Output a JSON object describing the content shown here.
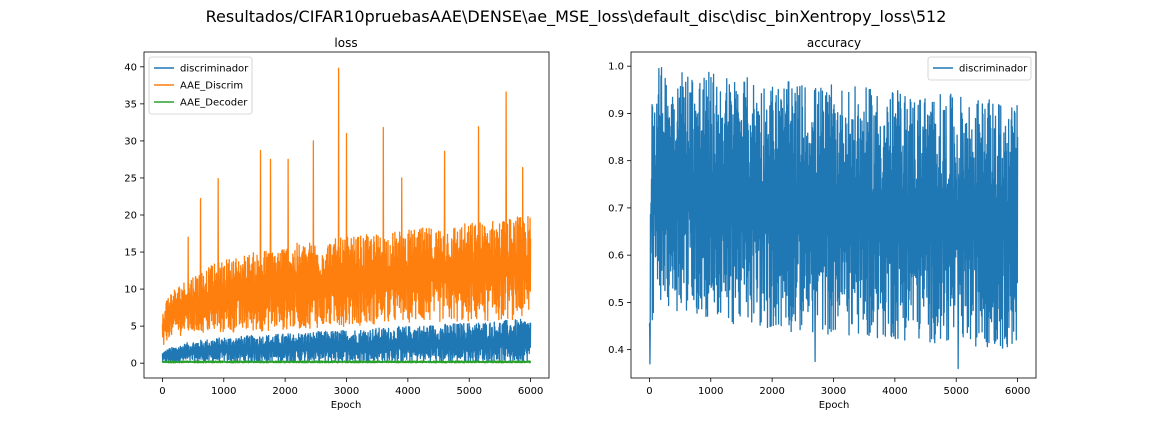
{
  "suptitle": "Resultados/CIFAR10pruebasAAE\\DENSE\\ae_MSE_loss\\default_disc\\disc_binXentropy_loss\\512",
  "chart_data": [
    {
      "type": "line",
      "title": "loss",
      "xlabel": "Epoch",
      "ylabel": "",
      "xlim": [
        -300,
        6300
      ],
      "ylim": [
        -2,
        42
      ],
      "xticks": [
        0,
        1000,
        2000,
        3000,
        4000,
        5000,
        6000
      ],
      "yticks": [
        0,
        5,
        10,
        15,
        20,
        25,
        30,
        35,
        40
      ],
      "legend_position": "top-left",
      "grid": false,
      "x_range": [
        0,
        6000
      ],
      "series": [
        {
          "name": "discriminador",
          "color": "#1f77b4",
          "x": [
            0,
            100,
            500,
            1000,
            2000,
            3000,
            4000,
            5000,
            6000
          ],
          "low": [
            0.1,
            0.1,
            0.1,
            0.1,
            0.1,
            0.1,
            0.1,
            0.1,
            0.1
          ],
          "high": [
            1.5,
            2.0,
            3.0,
            3.5,
            4.0,
            4.5,
            5.0,
            5.5,
            6.0
          ]
        },
        {
          "name": "AAE_Discrim",
          "color": "#ff7f0e",
          "x": [
            0,
            100,
            500,
            1000,
            2000,
            3000,
            4000,
            5000,
            6000
          ],
          "low": [
            1.5,
            3.5,
            4.0,
            4.0,
            4.5,
            5.0,
            5.5,
            5.5,
            6.0
          ],
          "high": [
            7.0,
            9.5,
            12.0,
            14.0,
            16.0,
            17.0,
            18.0,
            19.0,
            20.0
          ],
          "peaks": [
            {
              "x": 420,
              "y": 17.0
            },
            {
              "x": 620,
              "y": 22.2
            },
            {
              "x": 910,
              "y": 24.9
            },
            {
              "x": 1600,
              "y": 28.7
            },
            {
              "x": 1760,
              "y": 27.5
            },
            {
              "x": 2050,
              "y": 27.5
            },
            {
              "x": 2460,
              "y": 30.0
            },
            {
              "x": 2870,
              "y": 39.8
            },
            {
              "x": 3000,
              "y": 31.0
            },
            {
              "x": 3600,
              "y": 31.8
            },
            {
              "x": 3900,
              "y": 25.0
            },
            {
              "x": 4600,
              "y": 28.6
            },
            {
              "x": 5150,
              "y": 31.9
            },
            {
              "x": 5600,
              "y": 36.6
            },
            {
              "x": 5870,
              "y": 26.4
            }
          ]
        },
        {
          "name": "AAE_Decoder",
          "color": "#2ca02c",
          "x": [
            0,
            6000
          ],
          "low": [
            0.05,
            0.05
          ],
          "high": [
            0.3,
            0.3
          ]
        }
      ]
    },
    {
      "type": "line",
      "title": "accuracy",
      "xlabel": "Epoch",
      "ylabel": "",
      "xlim": [
        -300,
        6300
      ],
      "ylim": [
        0.34,
        1.03
      ],
      "xticks": [
        0,
        1000,
        2000,
        3000,
        4000,
        5000,
        6000
      ],
      "yticks": [
        0.4,
        0.5,
        0.6,
        0.7,
        0.8,
        0.9,
        1.0
      ],
      "legend_position": "top-right",
      "grid": false,
      "x_range": [
        0,
        6000
      ],
      "series": [
        {
          "name": "discriminador",
          "color": "#1f77b4",
          "x": [
            0,
            30,
            100,
            500,
            1000,
            2000,
            3000,
            4000,
            5000,
            6000
          ],
          "low": [
            0.37,
            0.45,
            0.5,
            0.48,
            0.46,
            0.44,
            0.43,
            0.42,
            0.41,
            0.4
          ],
          "high": [
            0.5,
            0.98,
            1.0,
            1.0,
            0.99,
            0.97,
            0.96,
            0.95,
            0.94,
            0.92
          ],
          "dips": [
            {
              "x": 2700,
              "y": 0.375
            },
            {
              "x": 5030,
              "y": 0.36
            },
            {
              "x": 10,
              "y": 0.37
            }
          ]
        }
      ]
    }
  ]
}
